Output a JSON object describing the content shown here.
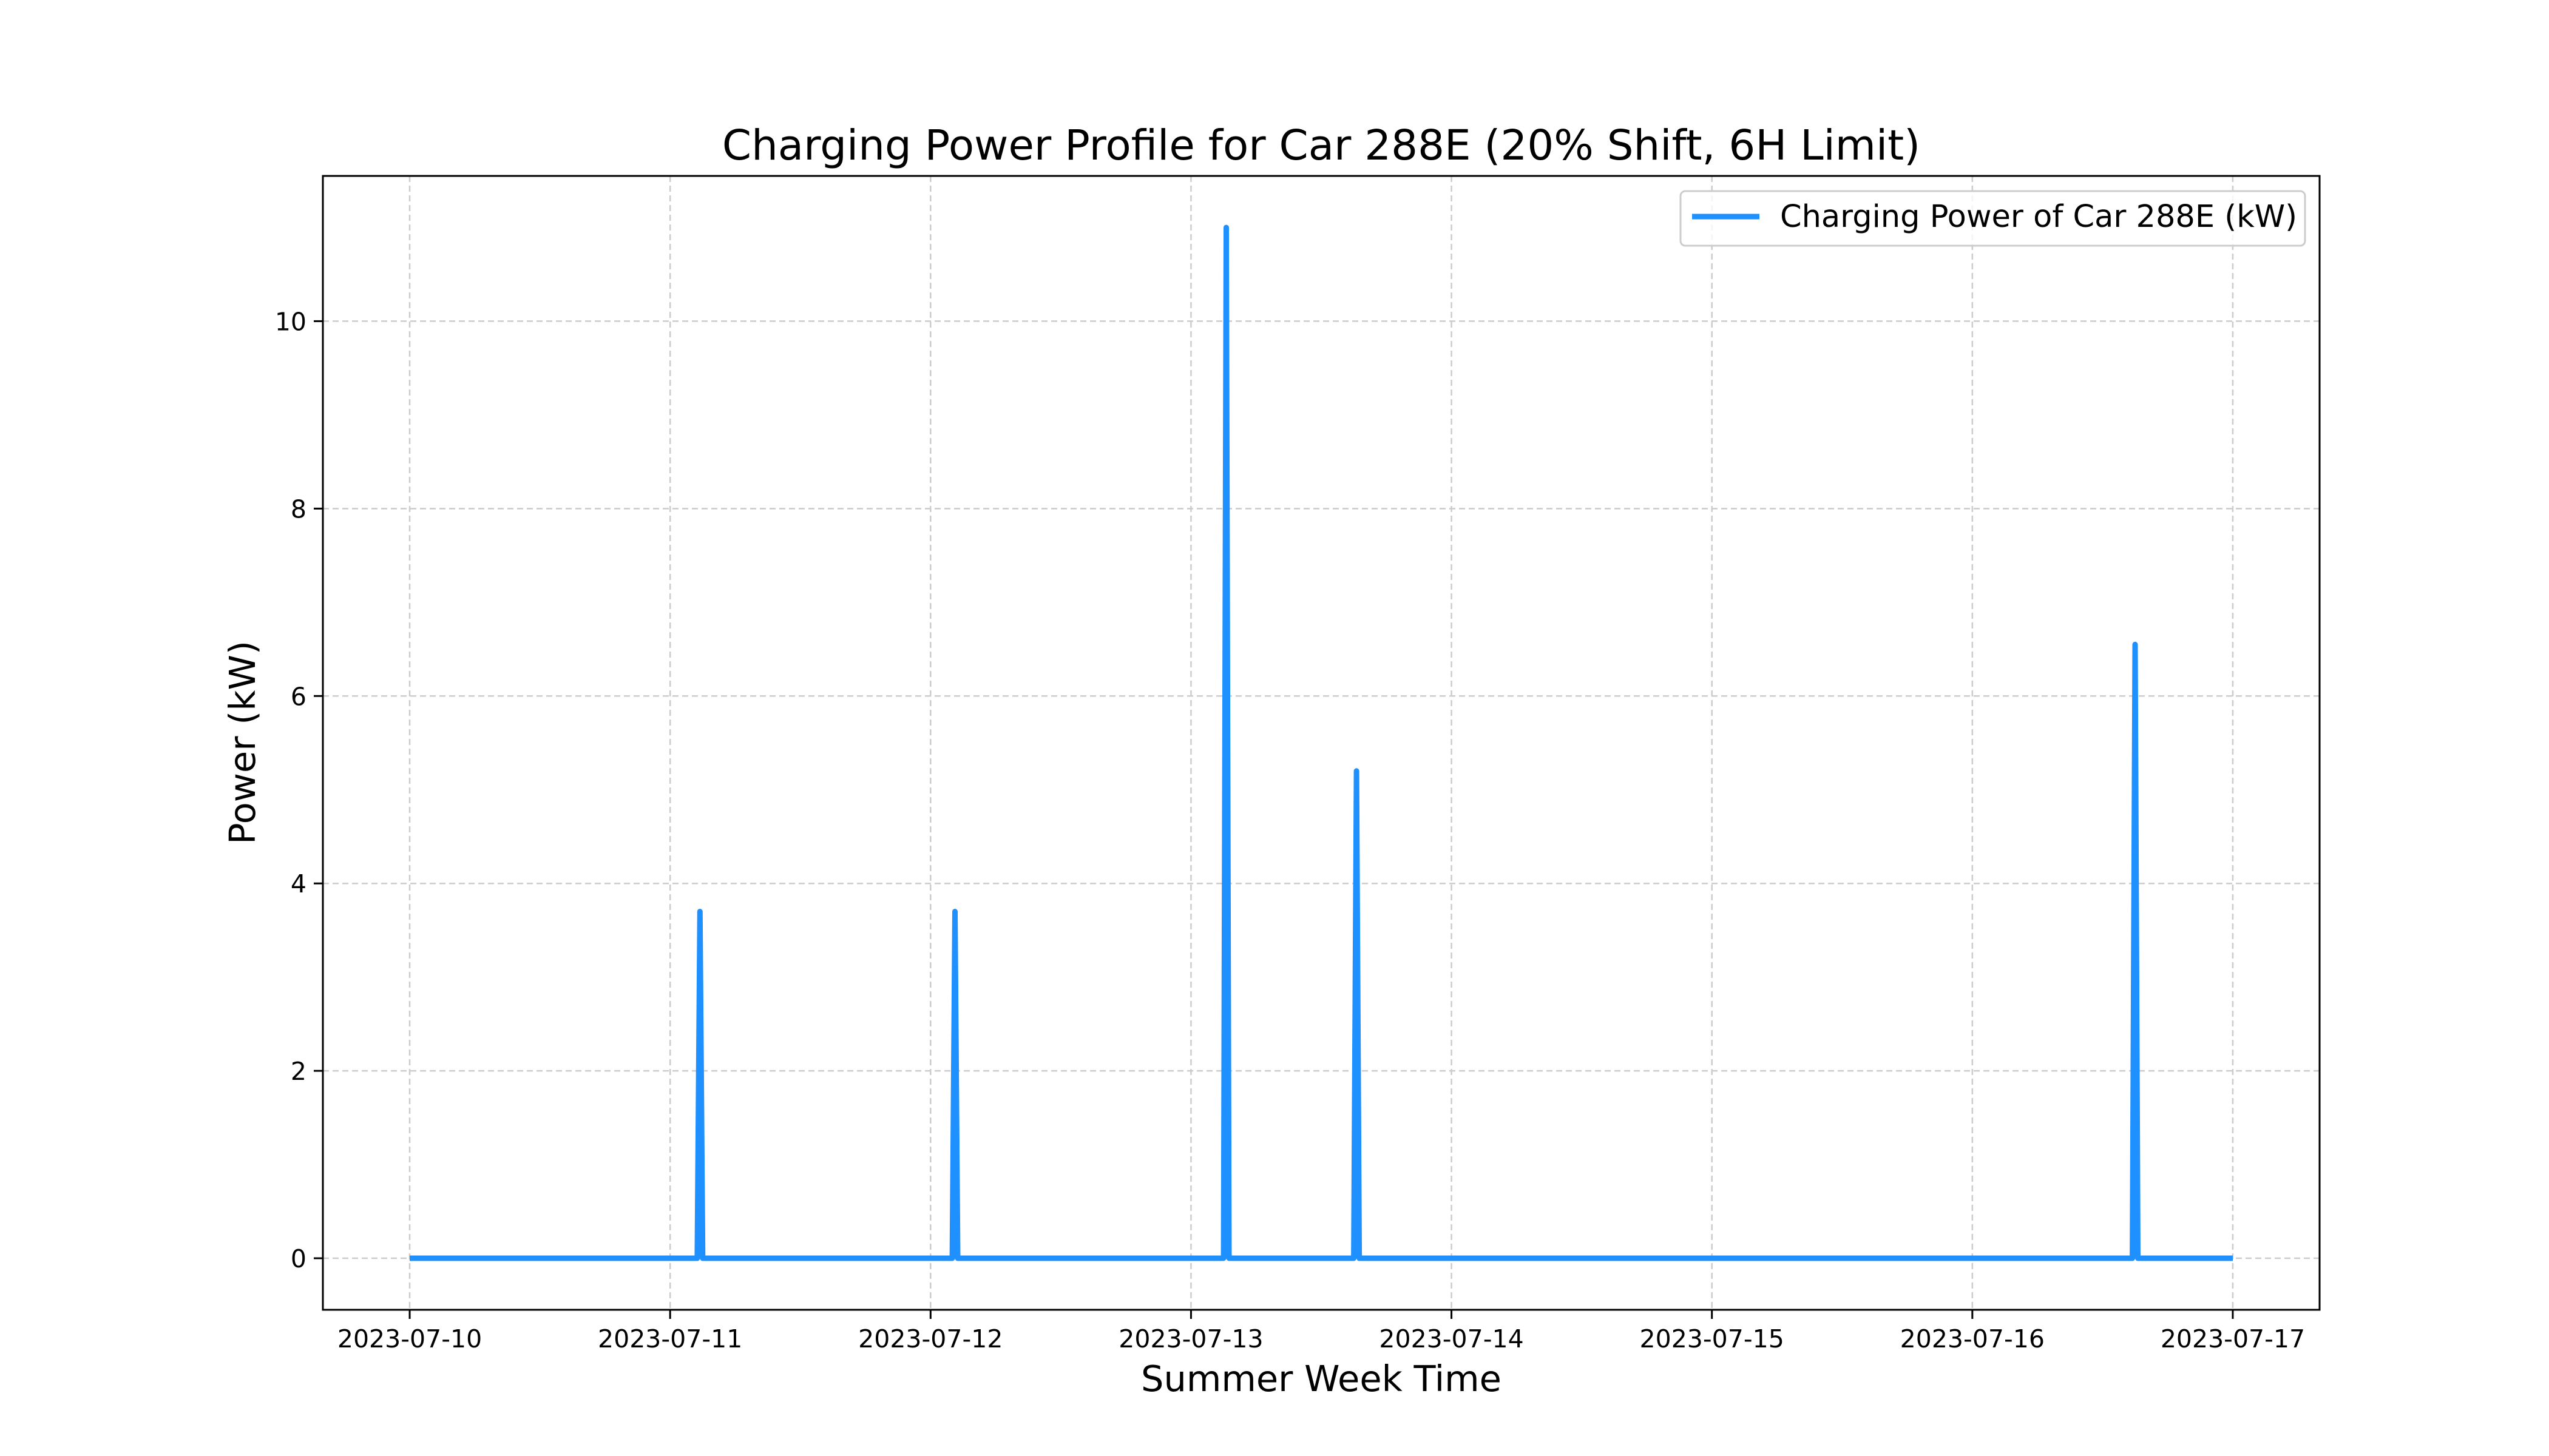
{
  "chart_data": {
    "type": "line",
    "title": "Charging Power Profile for Car 288E (20% Shift, 6H Limit)",
    "xlabel": "Summer Week Time",
    "ylabel": "Power (kW)",
    "x_tick_labels": [
      "2023-07-10",
      "2023-07-11",
      "2023-07-12",
      "2023-07-13",
      "2023-07-14",
      "2023-07-15",
      "2023-07-16",
      "2023-07-17"
    ],
    "y_ticks": [
      0,
      2,
      4,
      6,
      8,
      10
    ],
    "xlim": [
      "2023-07-09 16:00",
      "2023-07-17 08:00"
    ],
    "ylim": [
      -0.55,
      11.55
    ],
    "grid": true,
    "legend_position": "upper right",
    "colors": {
      "series": "#1e90ff",
      "grid": "#cccccc",
      "frame": "#000000"
    },
    "series": [
      {
        "name": "Charging Power of Car 288E (kW)",
        "x": [
          "2023-07-10 00:00",
          "2023-07-11 02:30",
          "2023-07-11 02:45",
          "2023-07-11 03:00",
          "2023-07-11 03:15",
          "2023-07-12 02:00",
          "2023-07-12 02:15",
          "2023-07-12 02:30",
          "2023-07-12 02:45",
          "2023-07-13 03:00",
          "2023-07-13 03:15",
          "2023-07-13 03:30",
          "2023-07-13 03:45",
          "2023-07-13 15:00",
          "2023-07-13 15:15",
          "2023-07-13 15:30",
          "2023-07-13 15:45",
          "2023-07-16 14:45",
          "2023-07-16 15:00",
          "2023-07-16 15:15",
          "2023-07-16 15:30",
          "2023-07-17 00:00"
        ],
        "y": [
          0,
          0,
          3.7,
          0,
          0,
          0,
          3.7,
          0,
          0,
          0,
          11.0,
          0,
          0,
          0,
          5.2,
          0,
          0,
          0,
          6.55,
          0,
          0,
          0
        ]
      }
    ]
  }
}
